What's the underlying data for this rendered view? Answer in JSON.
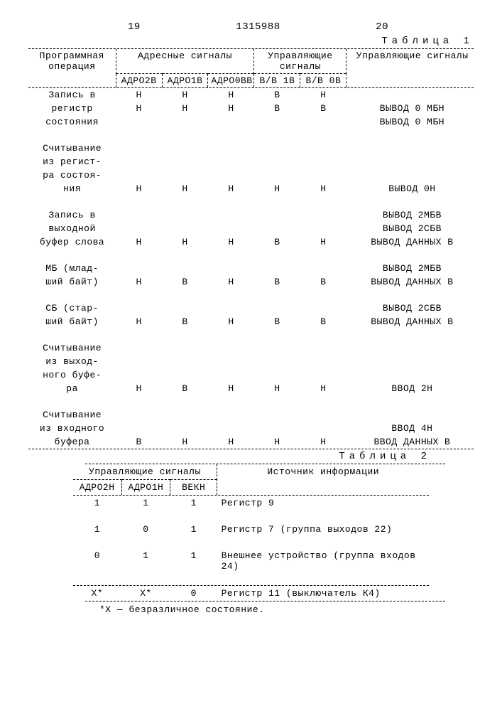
{
  "header": {
    "page_left": "19",
    "doc_number": "1315988",
    "page_right": "20"
  },
  "table1": {
    "label": "Таблица 1",
    "headers": {
      "operation": "Программная операция",
      "addr_signals": "Адресные сигналы",
      "ctrl_signals": "Управляющие сигналы",
      "out_signals": "Управляющие сигналы",
      "addr_cols": [
        "АДРО2В",
        "АДРО1В",
        "АДРО0ВВ"
      ],
      "ctrl_cols": [
        "В/В 1В",
        "В/В 0В"
      ]
    },
    "rows": [
      {
        "op": [
          "Запись в",
          "регистр",
          "состояния"
        ],
        "a": [
          [
            "Н",
            "Н"
          ],
          [
            "Н",
            "Н"
          ],
          [
            "Н",
            "Н"
          ]
        ],
        "c": [
          [
            "В",
            "В"
          ],
          [
            "Н",
            "В"
          ]
        ],
        "out": [
          "ВЫВОД 0 МБН",
          "ВЫВОД 0 МБН"
        ]
      },
      {
        "op": [
          "Считывание",
          "из регист-",
          "ра состоя-",
          "ния"
        ],
        "a": [
          [
            "Н"
          ],
          [
            "Н"
          ],
          [
            "Н"
          ]
        ],
        "c": [
          [
            "Н"
          ],
          [
            "Н"
          ]
        ],
        "out": [
          "ВЫВОД 0Н"
        ]
      },
      {
        "op": [
          "Запись в",
          "выходной",
          "буфер слова"
        ],
        "a": [
          [
            "Н"
          ],
          [
            "Н"
          ],
          [
            "Н"
          ]
        ],
        "c": [
          [
            "В"
          ],
          [
            "Н"
          ]
        ],
        "out": [
          "ВЫВОД 2МБВ",
          "ВЫВОД 2СБВ",
          "ВЫВОД ДАННЫХ В"
        ]
      },
      {
        "op": [
          "МБ (млад-",
          "ший байт)"
        ],
        "a": [
          [
            "Н"
          ],
          [
            "В"
          ],
          [
            "Н"
          ]
        ],
        "c": [
          [
            "В"
          ],
          [
            "В"
          ]
        ],
        "out": [
          "ВЫВОД 2МБВ",
          "ВЫВОД ДАННЫХ В"
        ]
      },
      {
        "op": [
          "СБ (стар-",
          "ший байт)"
        ],
        "a": [
          [
            "Н"
          ],
          [
            "В"
          ],
          [
            "Н"
          ]
        ],
        "c": [
          [
            "В"
          ],
          [
            "В"
          ]
        ],
        "out": [
          "ВЫВОД 2СБВ",
          "ВЫВОД ДАННЫХ В"
        ]
      },
      {
        "op": [
          "Считывание",
          "из выход-",
          "ного буфе-",
          "ра"
        ],
        "a": [
          [
            "Н"
          ],
          [
            "В"
          ],
          [
            "Н"
          ]
        ],
        "c": [
          [
            "Н"
          ],
          [
            "Н"
          ]
        ],
        "out": [
          "ВВОД 2Н"
        ]
      },
      {
        "op": [
          "Считывание",
          "из входного",
          "буфера"
        ],
        "a": [
          [
            "В"
          ],
          [
            "Н"
          ],
          [
            "Н"
          ]
        ],
        "c": [
          [
            "Н"
          ],
          [
            "Н"
          ]
        ],
        "out": [
          "ВВОД 4Н",
          "ВВОД ДАННЫХ В"
        ]
      }
    ]
  },
  "table2": {
    "label": "Таблица 2",
    "headers": {
      "ctrl_signals": "Управляющие сигналы",
      "source": "Источник информации",
      "cols": [
        "АДРО2Н",
        "АДРО1Н",
        "ВЕКН"
      ]
    },
    "rows": [
      {
        "s": [
          "1",
          "1",
          "1"
        ],
        "src": "Регистр 9"
      },
      {
        "s": [
          "1",
          "0",
          "1"
        ],
        "src": "Регистр 7 (группа выходов 22)"
      },
      {
        "s": [
          "0",
          "1",
          "1"
        ],
        "src": "Внешнее устройство (группа входов 24)"
      },
      {
        "s": [
          "Х*",
          "Х*",
          "0"
        ],
        "src": "Регистр 11 (выключатель К4)"
      }
    ],
    "footnote": "*Х — безразличное состояние."
  }
}
